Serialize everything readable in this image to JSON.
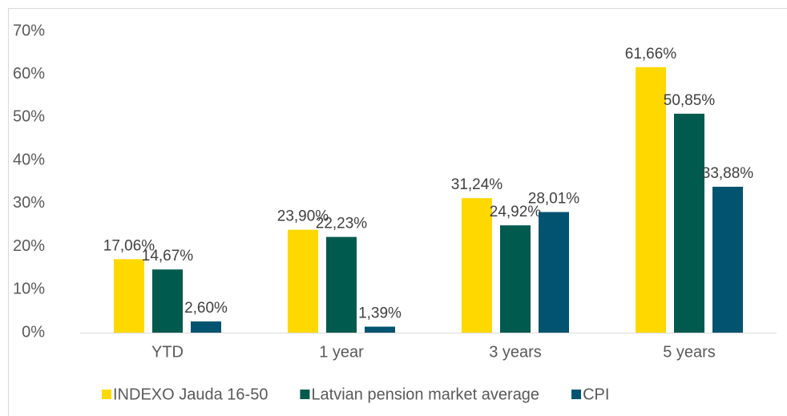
{
  "chart_data": {
    "type": "bar",
    "categories": [
      "YTD",
      "1 year",
      "3 years",
      "5 years"
    ],
    "series": [
      {
        "name": "INDEXO Jauda 16-50",
        "color": "#ffd800",
        "values": [
          17.06,
          23.9,
          31.24,
          61.66
        ],
        "value_labels": [
          "17,06%",
          "23,90%",
          "31,24%",
          "61,66%"
        ]
      },
      {
        "name": "Latvian pension market average",
        "color": "#005a4e",
        "values": [
          14.67,
          22.23,
          24.92,
          50.85
        ],
        "value_labels": [
          "14,67%",
          "22,23%",
          "24,92%",
          "50,85%"
        ]
      },
      {
        "name": "CPI",
        "color": "#01536f",
        "values": [
          2.6,
          1.39,
          28.01,
          33.88
        ],
        "value_labels": [
          "2,60%",
          "1,39%",
          "28,01%",
          "33,88%"
        ]
      }
    ],
    "ylim": [
      0,
      70
    ],
    "yticks": [
      {
        "value": 0,
        "label": "0%"
      },
      {
        "value": 10,
        "label": "10%"
      },
      {
        "value": 20,
        "label": "20%"
      },
      {
        "value": 30,
        "label": "30%"
      },
      {
        "value": 40,
        "label": "40%"
      },
      {
        "value": 50,
        "label": "50%"
      },
      {
        "value": 60,
        "label": "60%"
      },
      {
        "value": 70,
        "label": "70%"
      }
    ],
    "grid": false,
    "legend": "bottom"
  }
}
